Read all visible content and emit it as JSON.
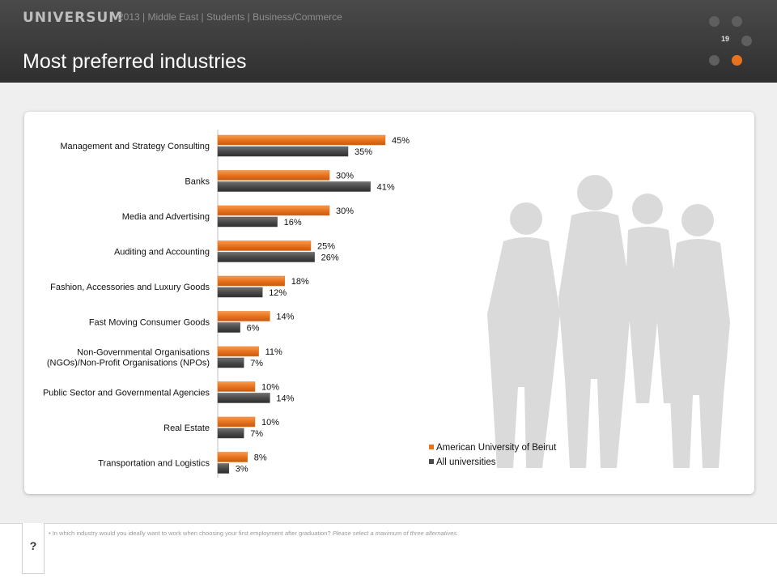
{
  "header": {
    "brand": "UNIVERSUM",
    "subtitle": "2013 | Middle East | Students | Business/Commerce",
    "title": "Most preferred industries",
    "page_number": "19"
  },
  "colors": {
    "series_aub": "#e8731e",
    "series_all": "#4a4a4a",
    "header_bg": "#3a3a3a"
  },
  "chart_data": {
    "type": "bar",
    "orientation": "horizontal",
    "categories": [
      "Management and Strategy Consulting",
      "Banks",
      "Media and Advertising",
      "Auditing and Accounting",
      "Fashion, Accessories and Luxury Goods",
      "Fast Moving Consumer Goods",
      "Non-Governmental Organisations\n(NGOs)/Non-Profit Organisations (NPOs)",
      "Public Sector and Governmental Agencies",
      "Real Estate",
      "Transportation and Logistics"
    ],
    "series": [
      {
        "name": "American University of Beirut",
        "values": [
          45,
          30,
          30,
          25,
          18,
          14,
          11,
          10,
          10,
          8
        ]
      },
      {
        "name": "All universities",
        "values": [
          35,
          41,
          16,
          26,
          12,
          6,
          7,
          14,
          7,
          3
        ]
      }
    ],
    "value_suffix": "%",
    "xlim": [
      0,
      100
    ],
    "legend_position": "bottom-right",
    "grid": false
  },
  "footnote": {
    "question": "In which industry would you ideally want to work when choosing your first employment after graduation?",
    "instruction": "Please select a maximum of three alternatives."
  },
  "help_tab": {
    "label": "?"
  }
}
